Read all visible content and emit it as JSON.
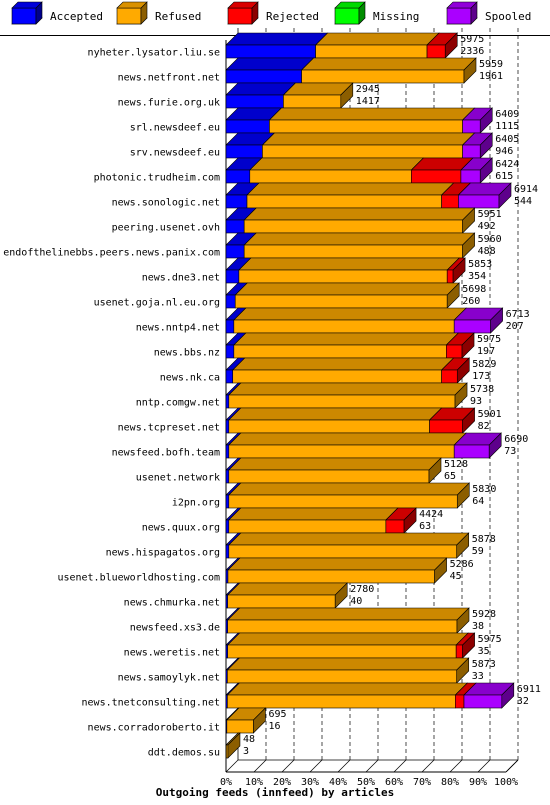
{
  "chart_data": {
    "type": "bar",
    "orientation": "horizontal",
    "stacked": true,
    "title": "Outgoing feeds (innfeed) by articles",
    "xlim": [
      0,
      100
    ],
    "x_ticks": [
      "0%",
      "10%",
      "20%",
      "30%",
      "40%",
      "50%",
      "60%",
      "70%",
      "80%",
      "90%",
      "100%"
    ],
    "legend_position": "top",
    "series": [
      {
        "name": "Accepted",
        "color": "#0000ff"
      },
      {
        "name": "Refused",
        "color": "#ffaa00"
      },
      {
        "name": "Rejected",
        "color": "#ff0000"
      },
      {
        "name": "Missing",
        "color": "#00ff00"
      },
      {
        "name": "Spooled",
        "color": "#aa00ff"
      }
    ],
    "rows": [
      {
        "name": "nyheter.lysator.liu.se",
        "offered": "5975",
        "accepted": "2336",
        "values": [
          32.0,
          39.8,
          6.5,
          0,
          0
        ]
      },
      {
        "name": "news.netfront.net",
        "offered": "5959",
        "accepted": "1961",
        "values": [
          27.0,
          58.0,
          0,
          0,
          0
        ]
      },
      {
        "name": "news.furie.org.uk",
        "offered": "2945",
        "accepted": "1417",
        "values": [
          20.5,
          20.5,
          0,
          0,
          0
        ]
      },
      {
        "name": "srl.newsdeef.eu",
        "offered": "6409",
        "accepted": "1115",
        "values": [
          15.5,
          69.0,
          0,
          0,
          6.3
        ]
      },
      {
        "name": "srv.newsdeef.eu",
        "offered": "6405",
        "accepted": "946",
        "values": [
          13.0,
          71.5,
          0,
          0,
          6.3
        ]
      },
      {
        "name": "photonic.trudheim.com",
        "offered": "6424",
        "accepted": "615",
        "values": [
          8.5,
          57.7,
          17.7,
          0,
          6.9
        ]
      },
      {
        "name": "news.sonologic.net",
        "offered": "6914",
        "accepted": "544",
        "values": [
          7.5,
          69.5,
          6.0,
          0,
          14.5
        ]
      },
      {
        "name": "peering.usenet.ovh",
        "offered": "5951",
        "accepted": "492",
        "values": [
          6.5,
          78.0,
          0,
          0,
          0
        ]
      },
      {
        "name": "endofthelinebbs.peers.news.panix.com",
        "offered": "5960",
        "accepted": "488",
        "values": [
          6.5,
          78.0,
          0,
          0,
          0
        ]
      },
      {
        "name": "news.dne3.net",
        "offered": "5853",
        "accepted": "354",
        "values": [
          4.6,
          74.4,
          2.1,
          0,
          0
        ]
      },
      {
        "name": "usenet.goja.nl.eu.org",
        "offered": "5698",
        "accepted": "260",
        "values": [
          3.3,
          75.7,
          0,
          0,
          0
        ]
      },
      {
        "name": "news.nntp4.net",
        "offered": "6713",
        "accepted": "207",
        "values": [
          2.8,
          78.7,
          0,
          0,
          13.0
        ]
      },
      {
        "name": "news.bbs.nz",
        "offered": "5975",
        "accepted": "197",
        "values": [
          2.8,
          75.9,
          5.6,
          0,
          0
        ]
      },
      {
        "name": "news.nk.ca",
        "offered": "5829",
        "accepted": "173",
        "values": [
          2.4,
          74.6,
          5.6,
          0,
          0
        ]
      },
      {
        "name": "nntp.comgw.net",
        "offered": "5738",
        "accepted": "93",
        "values": [
          1.0,
          80.8,
          0,
          0,
          0
        ]
      },
      {
        "name": "news.tcpreset.net",
        "offered": "5901",
        "accepted": "82",
        "values": [
          1.0,
          71.7,
          11.8,
          0,
          0
        ]
      },
      {
        "name": "newsfeed.bofh.team",
        "offered": "6690",
        "accepted": "73",
        "values": [
          1.0,
          80.5,
          0,
          0,
          12.5
        ]
      },
      {
        "name": "usenet.network",
        "offered": "5128",
        "accepted": "65",
        "values": [
          1.0,
          71.5,
          0,
          0,
          0
        ]
      },
      {
        "name": "i2pn.org",
        "offered": "5830",
        "accepted": "64",
        "values": [
          1.0,
          81.6,
          0,
          0,
          0
        ]
      },
      {
        "name": "news.quux.org",
        "offered": "4424",
        "accepted": "63",
        "values": [
          1.0,
          56.1,
          6.5,
          0,
          0
        ]
      },
      {
        "name": "news.hispagatos.org",
        "offered": "5878",
        "accepted": "59",
        "values": [
          1.0,
          81.4,
          0,
          0,
          0
        ]
      },
      {
        "name": "usenet.blueworldhosting.com",
        "offered": "5286",
        "accepted": "45",
        "values": [
          0.7,
          73.8,
          0,
          0,
          0
        ]
      },
      {
        "name": "news.chmurka.net",
        "offered": "2780",
        "accepted": "40",
        "values": [
          0.6,
          38.4,
          0,
          0,
          0
        ]
      },
      {
        "name": "newsfeed.xs3.de",
        "offered": "5928",
        "accepted": "38",
        "values": [
          0.6,
          81.9,
          0,
          0,
          0
        ]
      },
      {
        "name": "news.weretis.net",
        "offered": "5975",
        "accepted": "35",
        "values": [
          0.6,
          81.6,
          2.3,
          0,
          0
        ]
      },
      {
        "name": "news.samoylyk.net",
        "offered": "5873",
        "accepted": "33",
        "values": [
          0.5,
          81.9,
          0,
          0,
          0
        ]
      },
      {
        "name": "news.tnetconsulting.net",
        "offered": "6911",
        "accepted": "32",
        "values": [
          0.5,
          81.4,
          3.1,
          0,
          13.5
        ]
      },
      {
        "name": "news.corradoroberto.it",
        "offered": "695",
        "accepted": "16",
        "values": [
          0.3,
          9.5,
          0,
          0,
          0
        ]
      },
      {
        "name": "ddt.demos.su",
        "offered": "48",
        "accepted": "3",
        "values": [
          0.1,
          0.6,
          0,
          0,
          0
        ]
      }
    ]
  }
}
